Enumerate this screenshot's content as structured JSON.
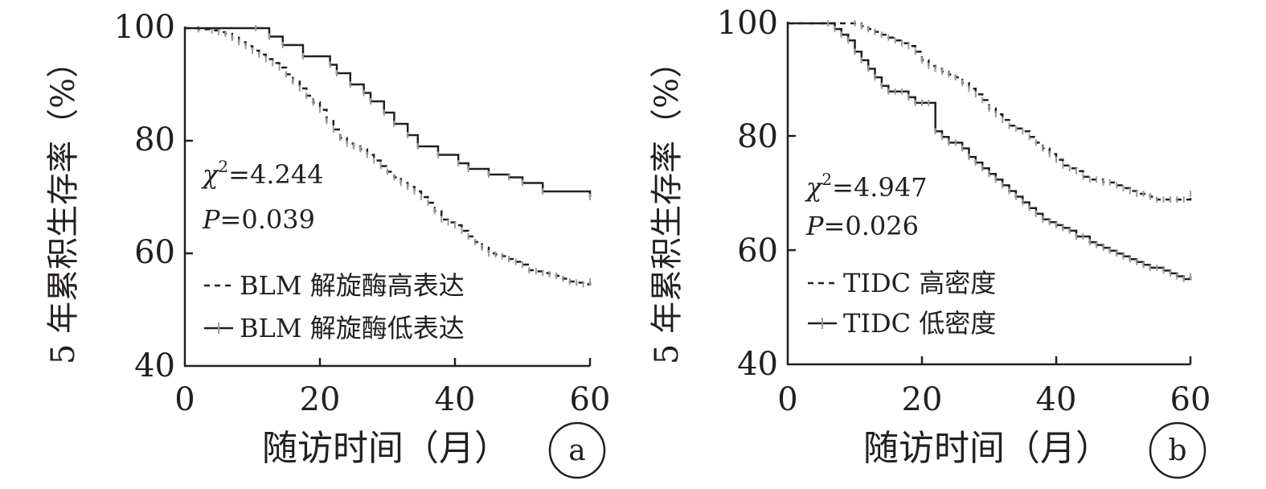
{
  "chart_data": [
    {
      "type": "line",
      "panel_label": "a",
      "ylabel": "5 年累积生存率（%）",
      "xlabel": "随访时间（月）",
      "xlim": [
        0,
        60
      ],
      "ylim": [
        40,
        100
      ],
      "xticks": [
        "0",
        "20",
        "40",
        "60"
      ],
      "yticks": [
        "40",
        "60",
        "80",
        "100"
      ],
      "stats": {
        "chi_label": "χ",
        "chi_sup": "2",
        "chi_value": "=4.244",
        "p_label": "P",
        "p_value": "=0.039"
      },
      "legend_position": "lower-left",
      "series": [
        {
          "name": "BLM 解旋酶高表达",
          "style": "dashed",
          "x": [
            0,
            2,
            4,
            5,
            6,
            7,
            8,
            9,
            10,
            11,
            12,
            13,
            14,
            15,
            16,
            17,
            18,
            19,
            20,
            21,
            22,
            23,
            24,
            25,
            26,
            27,
            28,
            29,
            30,
            31,
            32,
            33,
            34,
            35,
            36,
            37,
            38,
            39,
            40,
            41,
            42,
            43,
            44,
            45,
            46,
            47,
            48,
            49,
            50,
            51,
            52,
            53,
            54,
            55,
            56,
            57,
            58,
            59,
            60
          ],
          "y": [
            100,
            99.8,
            99.6,
            99.3,
            99,
            98.3,
            97.5,
            96.8,
            96,
            95.3,
            94.5,
            93.8,
            93,
            91.8,
            90.5,
            89.3,
            88,
            86.8,
            85.5,
            83.5,
            82,
            80.5,
            79.5,
            79,
            78.5,
            77.5,
            76.5,
            75.5,
            74.5,
            73.5,
            72.5,
            71.8,
            71,
            70,
            69,
            67.5,
            66,
            65.5,
            65,
            64,
            63,
            62,
            61,
            60,
            59.8,
            59.5,
            59,
            58.5,
            58,
            57,
            56.8,
            56.5,
            56.3,
            56,
            55.5,
            55,
            54.8,
            54.5,
            55
          ]
        },
        {
          "name": "BLM 解旋酶低表达",
          "style": "solid",
          "x": [
            0,
            10.5,
            12.5,
            14.5,
            17.5,
            21.5,
            22.5,
            24.5,
            26.5,
            27.5,
            29.5,
            31,
            33,
            34.5,
            37.5,
            40.5,
            42,
            45,
            48,
            50,
            53,
            60
          ],
          "y": [
            100,
            100,
            98.5,
            97,
            95,
            93.5,
            92,
            90,
            88.5,
            87,
            85,
            83,
            81,
            79,
            77.5,
            76,
            75,
            74,
            73.5,
            72.5,
            71,
            70
          ]
        }
      ]
    },
    {
      "type": "line",
      "panel_label": "b",
      "ylabel": "5 年累积生存率（%）",
      "xlabel": "随访时间（月）",
      "xlim": [
        0,
        60
      ],
      "ylim": [
        40,
        100
      ],
      "xticks": [
        "0",
        "20",
        "40",
        "60"
      ],
      "yticks": [
        "40",
        "60",
        "80",
        "100"
      ],
      "stats": {
        "chi_label": "χ",
        "chi_sup": "2",
        "chi_value": "=4.947",
        "p_label": "P",
        "p_value": "=0.026"
      },
      "legend_position": "lower-left",
      "series": [
        {
          "name": "TIDC 高密度",
          "style": "dashed",
          "x": [
            0,
            10,
            11,
            12,
            13,
            14,
            15,
            16,
            17,
            18,
            19,
            20,
            21,
            22,
            23,
            24,
            25,
            26,
            27,
            28,
            29,
            30,
            31,
            32,
            33,
            34,
            35,
            36,
            37,
            38,
            39,
            40,
            41,
            42,
            43,
            44,
            45,
            46,
            47,
            48,
            49,
            50,
            51,
            52,
            53,
            54,
            55,
            56,
            57,
            58,
            59,
            60
          ],
          "y": [
            100,
            100,
            99.5,
            99,
            98.5,
            98,
            97.5,
            97,
            96.5,
            96,
            95,
            93.5,
            92.5,
            92,
            91.5,
            91,
            90.5,
            89.5,
            88.5,
            87.5,
            86.5,
            85,
            84,
            83,
            82,
            81.5,
            81,
            80,
            79,
            78,
            77,
            76,
            75,
            74.5,
            74,
            73,
            72.5,
            72.5,
            72,
            72,
            71.5,
            71,
            70.5,
            70,
            70,
            69.5,
            69,
            69,
            69,
            69,
            69,
            70
          ]
        },
        {
          "name": "TIDC 低密度",
          "style": "solid",
          "x": [
            0,
            6,
            7,
            8,
            9,
            10,
            11,
            12,
            13,
            14,
            15,
            16,
            17,
            18,
            19,
            20,
            21,
            22,
            23,
            24,
            25,
            26,
            27,
            28,
            29,
            30,
            31,
            32,
            33,
            34,
            35,
            36,
            37,
            38,
            39,
            40,
            41,
            42,
            43,
            44,
            45,
            46,
            47,
            48,
            49,
            50,
            51,
            52,
            53,
            54,
            55,
            56,
            57,
            58,
            59,
            60
          ],
          "y": [
            100,
            100,
            99,
            98,
            97,
            95,
            93.5,
            92,
            90.5,
            89,
            88,
            88,
            88,
            87,
            86,
            86,
            86,
            81,
            80,
            79,
            79,
            78,
            76.5,
            75.5,
            74.5,
            73.5,
            72.5,
            71.5,
            70.5,
            69.5,
            68.5,
            67.5,
            66.5,
            65.5,
            65,
            64.5,
            64,
            63.5,
            62.5,
            62.5,
            61.5,
            61,
            60.5,
            60,
            59.5,
            59,
            58.5,
            58,
            57.5,
            57,
            57,
            56.5,
            56,
            55.5,
            55,
            55.5
          ]
        }
      ]
    }
  ]
}
